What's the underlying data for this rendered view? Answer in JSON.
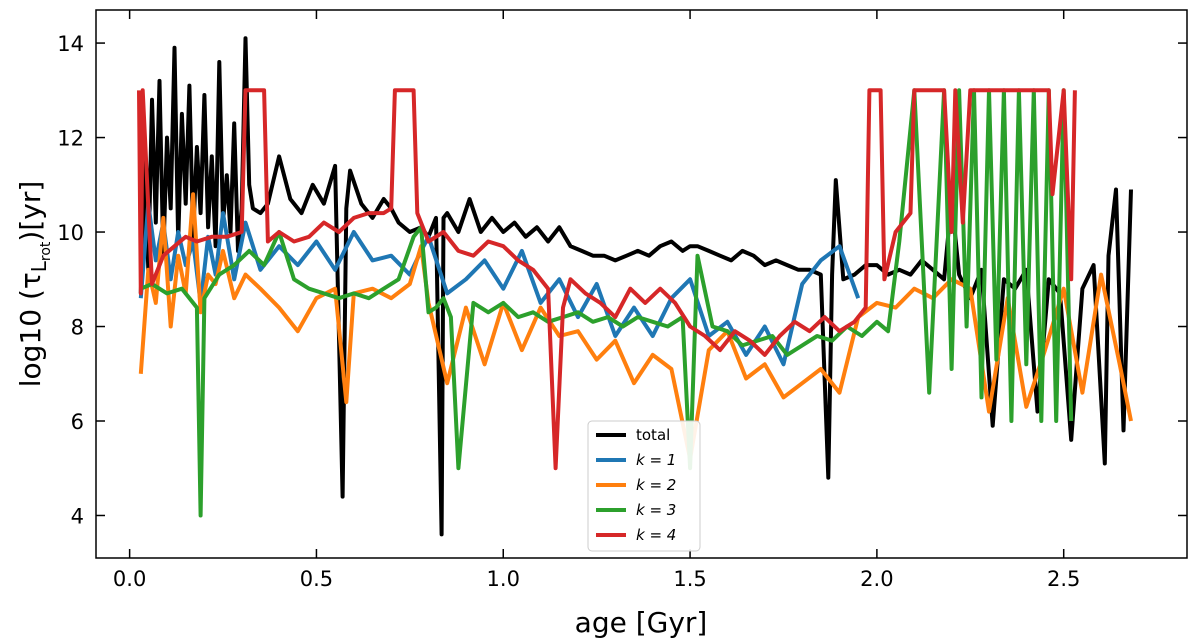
{
  "chart_data": {
    "type": "line",
    "title": "",
    "xlabel": "age [Gyr]",
    "ylabel": "log10 (τ",
    "ylabel_sub": "L",
    "ylabel_subsub": "rot",
    "ylabel_suffix": ")[yr]",
    "xlim": [
      -0.09,
      2.83
    ],
    "ylim": [
      3.1,
      14.7
    ],
    "xticks": [
      0.0,
      0.5,
      1.0,
      1.5,
      2.0,
      2.5
    ],
    "xtick_labels": [
      "0.0",
      "0.5",
      "1.0",
      "1.5",
      "2.0",
      "2.5"
    ],
    "yticks": [
      4,
      6,
      8,
      10,
      12,
      14
    ],
    "ytick_labels": [
      "4",
      "6",
      "8",
      "10",
      "12",
      "14"
    ],
    "legend_position": "lower-center",
    "series": [
      {
        "name": "total",
        "label": "total",
        "color": "#000000",
        "x": [
          0.03,
          0.04,
          0.05,
          0.06,
          0.07,
          0.08,
          0.09,
          0.1,
          0.11,
          0.12,
          0.13,
          0.14,
          0.15,
          0.16,
          0.17,
          0.18,
          0.19,
          0.2,
          0.21,
          0.22,
          0.23,
          0.24,
          0.25,
          0.26,
          0.27,
          0.28,
          0.29,
          0.3,
          0.31,
          0.32,
          0.33,
          0.35,
          0.37,
          0.4,
          0.43,
          0.46,
          0.49,
          0.52,
          0.55,
          0.57,
          0.58,
          0.59,
          0.62,
          0.65,
          0.68,
          0.7,
          0.72,
          0.75,
          0.78,
          0.8,
          0.82,
          0.835,
          0.84,
          0.85,
          0.88,
          0.91,
          0.94,
          0.97,
          1.0,
          1.03,
          1.06,
          1.09,
          1.12,
          1.15,
          1.18,
          1.21,
          1.24,
          1.27,
          1.3,
          1.33,
          1.36,
          1.39,
          1.42,
          1.45,
          1.48,
          1.5,
          1.52,
          1.55,
          1.58,
          1.61,
          1.64,
          1.67,
          1.7,
          1.73,
          1.76,
          1.79,
          1.82,
          1.85,
          1.87,
          1.88,
          1.89,
          1.91,
          1.94,
          1.97,
          2.0,
          2.03,
          2.06,
          2.09,
          2.12,
          2.15,
          2.18,
          2.2,
          2.22,
          2.25,
          2.28,
          2.31,
          2.34,
          2.37,
          2.4,
          2.43,
          2.46,
          2.49,
          2.52,
          2.55,
          2.58,
          2.61,
          2.62,
          2.64,
          2.66,
          2.68
        ],
        "y": [
          8.7,
          11.5,
          9.2,
          12.8,
          10.2,
          13.2,
          9.5,
          12.0,
          10.5,
          13.9,
          9.8,
          12.5,
          10.6,
          13.1,
          9.9,
          11.8,
          10.4,
          12.9,
          10.1,
          11.6,
          9.7,
          13.6,
          10.2,
          11.2,
          10.0,
          12.3,
          9.6,
          10.5,
          14.1,
          11.0,
          10.5,
          10.4,
          10.6,
          11.6,
          10.7,
          10.4,
          11.0,
          10.6,
          11.4,
          4.4,
          10.5,
          11.3,
          10.6,
          10.3,
          10.7,
          10.5,
          10.2,
          10.0,
          10.1,
          9.9,
          10.3,
          3.6,
          10.3,
          10.4,
          10.0,
          10.7,
          10.0,
          10.3,
          10.0,
          10.2,
          9.9,
          10.1,
          9.8,
          10.1,
          9.7,
          9.6,
          9.5,
          9.5,
          9.4,
          9.5,
          9.6,
          9.5,
          9.7,
          9.8,
          9.6,
          9.7,
          9.7,
          9.6,
          9.5,
          9.4,
          9.6,
          9.5,
          9.3,
          9.4,
          9.3,
          9.2,
          9.2,
          9.1,
          4.8,
          9.1,
          11.1,
          9.0,
          9.1,
          9.3,
          9.3,
          9.1,
          9.2,
          9.1,
          9.4,
          9.2,
          9.0,
          10.7,
          9.1,
          8.6,
          9.2,
          5.9,
          9.0,
          8.8,
          9.2,
          6.2,
          9.0,
          8.7,
          5.6,
          8.8,
          9.3,
          5.1,
          9.5,
          10.9,
          5.8,
          10.9
        ]
      },
      {
        "name": "k=1",
        "label": "k = 1",
        "color": "#1f77b4",
        "x": [
          0.03,
          0.05,
          0.07,
          0.09,
          0.11,
          0.13,
          0.15,
          0.17,
          0.19,
          0.21,
          0.23,
          0.25,
          0.28,
          0.31,
          0.35,
          0.4,
          0.45,
          0.5,
          0.55,
          0.6,
          0.65,
          0.7,
          0.75,
          0.78,
          0.8,
          0.85,
          0.9,
          0.95,
          1.0,
          1.05,
          1.1,
          1.15,
          1.2,
          1.25,
          1.3,
          1.35,
          1.4,
          1.45,
          1.5,
          1.55,
          1.6,
          1.65,
          1.7,
          1.75,
          1.8,
          1.85,
          1.9,
          1.95
        ],
        "y": [
          8.6,
          10.6,
          9.4,
          10.2,
          9.0,
          10.0,
          9.3,
          9.8,
          8.5,
          9.9,
          9.1,
          10.4,
          9.0,
          10.2,
          9.2,
          9.7,
          9.3,
          9.8,
          9.2,
          10.0,
          9.4,
          9.5,
          9.1,
          9.6,
          9.9,
          8.7,
          9.0,
          9.4,
          8.8,
          9.6,
          8.5,
          9.0,
          8.2,
          8.9,
          7.8,
          8.4,
          7.8,
          8.6,
          9.0,
          7.8,
          8.1,
          7.4,
          8.0,
          7.2,
          8.9,
          9.4,
          9.7,
          8.6
        ]
      },
      {
        "name": "k=2",
        "label": "k = 2",
        "color": "#ff7f0e",
        "x": [
          0.03,
          0.05,
          0.07,
          0.09,
          0.11,
          0.13,
          0.15,
          0.17,
          0.19,
          0.21,
          0.23,
          0.25,
          0.28,
          0.31,
          0.35,
          0.4,
          0.45,
          0.5,
          0.55,
          0.58,
          0.6,
          0.65,
          0.7,
          0.75,
          0.78,
          0.8,
          0.85,
          0.9,
          0.95,
          1.0,
          1.05,
          1.1,
          1.15,
          1.2,
          1.25,
          1.3,
          1.35,
          1.4,
          1.45,
          1.5,
          1.55,
          1.6,
          1.65,
          1.7,
          1.75,
          1.8,
          1.85,
          1.9,
          1.95,
          2.0,
          2.05,
          2.1,
          2.15,
          2.2,
          2.25,
          2.3,
          2.35,
          2.4,
          2.45,
          2.5,
          2.55,
          2.6,
          2.65,
          2.68
        ],
        "y": [
          7.0,
          9.2,
          8.5,
          10.3,
          8.0,
          9.5,
          8.7,
          10.8,
          8.3,
          9.1,
          8.9,
          9.6,
          8.6,
          9.1,
          8.8,
          8.4,
          7.9,
          8.6,
          8.8,
          6.4,
          8.7,
          8.8,
          8.6,
          8.9,
          9.7,
          8.5,
          6.8,
          8.4,
          7.2,
          8.5,
          7.5,
          8.4,
          7.8,
          7.9,
          7.3,
          7.7,
          6.8,
          7.4,
          7.1,
          5.2,
          7.5,
          7.9,
          6.9,
          7.2,
          6.5,
          6.8,
          7.1,
          6.6,
          8.2,
          8.5,
          8.4,
          8.8,
          8.6,
          9.0,
          8.8,
          6.2,
          8.6,
          6.3,
          7.5,
          8.8,
          6.6,
          9.1,
          7.2,
          6.0
        ]
      },
      {
        "name": "k=3",
        "label": "k = 3",
        "color": "#2ca02c",
        "x": [
          0.03,
          0.06,
          0.1,
          0.14,
          0.18,
          0.19,
          0.2,
          0.24,
          0.28,
          0.32,
          0.36,
          0.4,
          0.44,
          0.48,
          0.52,
          0.56,
          0.6,
          0.64,
          0.68,
          0.72,
          0.76,
          0.78,
          0.8,
          0.82,
          0.84,
          0.86,
          0.88,
          0.92,
          0.96,
          1.0,
          1.04,
          1.08,
          1.12,
          1.16,
          1.2,
          1.24,
          1.28,
          1.32,
          1.36,
          1.4,
          1.44,
          1.48,
          1.5,
          1.52,
          1.56,
          1.6,
          1.64,
          1.68,
          1.72,
          1.76,
          1.8,
          1.84,
          1.88,
          1.92,
          1.96,
          2.0,
          2.03,
          2.06,
          2.1,
          2.14,
          2.18,
          2.2,
          2.22,
          2.24,
          2.26,
          2.28,
          2.3,
          2.32,
          2.34,
          2.36,
          2.38,
          2.4,
          2.42,
          2.44,
          2.46,
          2.48,
          2.5,
          2.52
        ],
        "y": [
          8.8,
          8.9,
          8.7,
          8.8,
          8.4,
          4.0,
          8.6,
          9.1,
          9.3,
          9.6,
          9.3,
          10.0,
          9.0,
          8.8,
          8.7,
          8.6,
          8.7,
          8.6,
          8.8,
          9.0,
          9.9,
          10.1,
          8.3,
          8.4,
          8.6,
          8.2,
          5.0,
          8.5,
          8.3,
          8.5,
          8.2,
          8.3,
          8.1,
          8.2,
          8.3,
          8.1,
          8.2,
          8.0,
          8.2,
          8.1,
          8.0,
          8.2,
          5.0,
          9.5,
          8.0,
          7.9,
          7.6,
          7.7,
          7.8,
          7.4,
          7.6,
          7.8,
          7.7,
          8.0,
          7.8,
          8.1,
          7.9,
          9.8,
          13.0,
          6.6,
          13.0,
          7.1,
          13.0,
          8.0,
          13.0,
          6.5,
          13.0,
          7.3,
          13.0,
          6.0,
          13.0,
          7.2,
          13.0,
          6.0,
          13.0,
          6.0,
          13.0,
          6.0
        ]
      },
      {
        "name": "k=4",
        "label": "k = 4",
        "color": "#d62728",
        "x": [
          0.025,
          0.03,
          0.035,
          0.06,
          0.09,
          0.12,
          0.15,
          0.18,
          0.22,
          0.26,
          0.3,
          0.31,
          0.32,
          0.36,
          0.37,
          0.4,
          0.44,
          0.48,
          0.52,
          0.56,
          0.6,
          0.64,
          0.68,
          0.7,
          0.71,
          0.76,
          0.77,
          0.8,
          0.84,
          0.88,
          0.92,
          0.96,
          1.0,
          1.04,
          1.08,
          1.12,
          1.14,
          1.16,
          1.18,
          1.22,
          1.26,
          1.3,
          1.34,
          1.38,
          1.42,
          1.46,
          1.5,
          1.54,
          1.58,
          1.62,
          1.66,
          1.7,
          1.74,
          1.78,
          1.82,
          1.86,
          1.9,
          1.94,
          1.97,
          1.98,
          2.01,
          2.02,
          2.05,
          2.09,
          2.1,
          2.14,
          2.18,
          2.2,
          2.21,
          2.23,
          2.25,
          2.27,
          2.31,
          2.35,
          2.39,
          2.43,
          2.46,
          2.47,
          2.5,
          2.52,
          2.53
        ],
        "y": [
          13.0,
          8.7,
          13.0,
          8.9,
          9.5,
          9.7,
          9.9,
          9.8,
          9.9,
          9.9,
          10.0,
          13.0,
          13.0,
          13.0,
          9.8,
          10.0,
          9.8,
          9.9,
          10.2,
          10.0,
          10.3,
          10.4,
          10.4,
          10.5,
          13.0,
          13.0,
          10.4,
          9.8,
          10.0,
          9.6,
          9.5,
          9.8,
          9.7,
          9.4,
          9.2,
          8.8,
          5.0,
          8.4,
          9.0,
          8.7,
          8.5,
          8.2,
          8.8,
          8.5,
          8.8,
          8.5,
          8.0,
          7.8,
          7.5,
          7.9,
          7.7,
          7.4,
          7.8,
          8.1,
          7.9,
          8.2,
          7.9,
          8.1,
          8.4,
          13.0,
          13.0,
          9.0,
          10.0,
          10.4,
          13.0,
          13.0,
          13.0,
          10.0,
          13.0,
          10.2,
          13.0,
          13.0,
          13.0,
          13.0,
          13.0,
          13.0,
          13.0,
          10.8,
          13.0,
          9.0,
          13.0
        ]
      }
    ]
  }
}
